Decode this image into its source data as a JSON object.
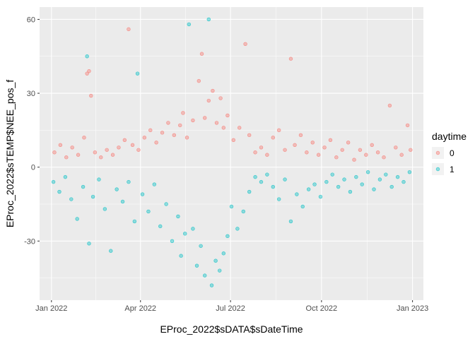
{
  "chart_data": {
    "type": "scatter",
    "title": "",
    "xlabel": "EProc_2022$sDATA$sDateTime",
    "ylabel": "EProc_2022$sTEMP$NEE_pos_f",
    "xlim": [
      "2021-12-20",
      "2023-01-12"
    ],
    "ylim": [
      -54,
      65
    ],
    "x_ticks": [
      {
        "date": "2022-01-01",
        "label": "Jan 2022"
      },
      {
        "date": "2022-04-01",
        "label": "Apr 2022"
      },
      {
        "date": "2022-07-01",
        "label": "Jul 2022"
      },
      {
        "date": "2022-10-01",
        "label": "Oct 2022"
      },
      {
        "date": "2023-01-01",
        "label": "Jan 2023"
      }
    ],
    "y_ticks": [
      -30,
      0,
      30,
      60
    ],
    "grid": true,
    "panel_background": "#EBEBEB",
    "grid_color": "#FFFFFF",
    "point_alpha": 0.4,
    "legend": {
      "title": "daytime",
      "position": "right",
      "entries": [
        {
          "label": "0",
          "color": "#F8766D"
        },
        {
          "label": "1",
          "color": "#00BFC4"
        }
      ]
    },
    "series": [
      {
        "name": "0",
        "color": "#F8766D",
        "points": [
          {
            "x": "2022-01-04",
            "y": 6
          },
          {
            "x": "2022-01-10",
            "y": 9
          },
          {
            "x": "2022-01-16",
            "y": 4
          },
          {
            "x": "2022-01-22",
            "y": 8
          },
          {
            "x": "2022-01-28",
            "y": 5
          },
          {
            "x": "2022-02-03",
            "y": 12
          },
          {
            "x": "2022-02-06",
            "y": 38
          },
          {
            "x": "2022-02-08",
            "y": 39
          },
          {
            "x": "2022-02-10",
            "y": 29
          },
          {
            "x": "2022-02-14",
            "y": 6
          },
          {
            "x": "2022-02-20",
            "y": 4
          },
          {
            "x": "2022-02-26",
            "y": 7
          },
          {
            "x": "2022-03-04",
            "y": 5
          },
          {
            "x": "2022-03-10",
            "y": 8
          },
          {
            "x": "2022-03-16",
            "y": 11
          },
          {
            "x": "2022-03-20",
            "y": 56
          },
          {
            "x": "2022-03-24",
            "y": 9
          },
          {
            "x": "2022-03-30",
            "y": 7
          },
          {
            "x": "2022-04-05",
            "y": 12
          },
          {
            "x": "2022-04-11",
            "y": 15
          },
          {
            "x": "2022-04-17",
            "y": 10
          },
          {
            "x": "2022-04-23",
            "y": 14
          },
          {
            "x": "2022-04-29",
            "y": 18
          },
          {
            "x": "2022-05-05",
            "y": 13
          },
          {
            "x": "2022-05-11",
            "y": 17
          },
          {
            "x": "2022-05-14",
            "y": 22
          },
          {
            "x": "2022-05-18",
            "y": 12
          },
          {
            "x": "2022-05-24",
            "y": 19
          },
          {
            "x": "2022-05-30",
            "y": 35
          },
          {
            "x": "2022-06-02",
            "y": 46
          },
          {
            "x": "2022-06-05",
            "y": 20
          },
          {
            "x": "2022-06-09",
            "y": 27
          },
          {
            "x": "2022-06-13",
            "y": 31
          },
          {
            "x": "2022-06-17",
            "y": 18
          },
          {
            "x": "2022-06-21",
            "y": 28
          },
          {
            "x": "2022-06-24",
            "y": 16
          },
          {
            "x": "2022-06-28",
            "y": 21
          },
          {
            "x": "2022-07-04",
            "y": 11
          },
          {
            "x": "2022-07-10",
            "y": 16
          },
          {
            "x": "2022-07-16",
            "y": 50
          },
          {
            "x": "2022-07-20",
            "y": 13
          },
          {
            "x": "2022-07-26",
            "y": 6
          },
          {
            "x": "2022-08-01",
            "y": 8
          },
          {
            "x": "2022-08-07",
            "y": 5
          },
          {
            "x": "2022-08-13",
            "y": 12
          },
          {
            "x": "2022-08-19",
            "y": 15
          },
          {
            "x": "2022-08-25",
            "y": 7
          },
          {
            "x": "2022-08-31",
            "y": 44
          },
          {
            "x": "2022-09-04",
            "y": 9
          },
          {
            "x": "2022-09-10",
            "y": 13
          },
          {
            "x": "2022-09-16",
            "y": 6
          },
          {
            "x": "2022-09-22",
            "y": 10
          },
          {
            "x": "2022-09-28",
            "y": 5
          },
          {
            "x": "2022-10-04",
            "y": 8
          },
          {
            "x": "2022-10-10",
            "y": 11
          },
          {
            "x": "2022-10-16",
            "y": 4
          },
          {
            "x": "2022-10-22",
            "y": 7
          },
          {
            "x": "2022-10-28",
            "y": 10
          },
          {
            "x": "2022-11-03",
            "y": 3
          },
          {
            "x": "2022-11-09",
            "y": 7
          },
          {
            "x": "2022-11-15",
            "y": 5
          },
          {
            "x": "2022-11-21",
            "y": 9
          },
          {
            "x": "2022-11-27",
            "y": 6
          },
          {
            "x": "2022-12-03",
            "y": 4
          },
          {
            "x": "2022-12-09",
            "y": 25
          },
          {
            "x": "2022-12-15",
            "y": 8
          },
          {
            "x": "2022-12-21",
            "y": 5
          },
          {
            "x": "2022-12-27",
            "y": 17
          },
          {
            "x": "2022-12-30",
            "y": 7
          }
        ]
      },
      {
        "name": "1",
        "color": "#00BFC4",
        "points": [
          {
            "x": "2022-01-03",
            "y": -6
          },
          {
            "x": "2022-01-09",
            "y": -10
          },
          {
            "x": "2022-01-15",
            "y": -4
          },
          {
            "x": "2022-01-21",
            "y": -13
          },
          {
            "x": "2022-01-27",
            "y": -21
          },
          {
            "x": "2022-02-02",
            "y": -8
          },
          {
            "x": "2022-02-06",
            "y": 45
          },
          {
            "x": "2022-02-08",
            "y": -31
          },
          {
            "x": "2022-02-12",
            "y": -12
          },
          {
            "x": "2022-02-18",
            "y": -5
          },
          {
            "x": "2022-02-24",
            "y": -17
          },
          {
            "x": "2022-03-02",
            "y": -34
          },
          {
            "x": "2022-03-08",
            "y": -9
          },
          {
            "x": "2022-03-14",
            "y": -14
          },
          {
            "x": "2022-03-20",
            "y": -6
          },
          {
            "x": "2022-03-26",
            "y": -22
          },
          {
            "x": "2022-03-29",
            "y": 38
          },
          {
            "x": "2022-04-03",
            "y": -11
          },
          {
            "x": "2022-04-09",
            "y": -18
          },
          {
            "x": "2022-04-15",
            "y": -7
          },
          {
            "x": "2022-04-21",
            "y": -24
          },
          {
            "x": "2022-04-27",
            "y": -15
          },
          {
            "x": "2022-05-03",
            "y": -30
          },
          {
            "x": "2022-05-09",
            "y": -20
          },
          {
            "x": "2022-05-12",
            "y": -36
          },
          {
            "x": "2022-05-16",
            "y": -27
          },
          {
            "x": "2022-05-20",
            "y": 58
          },
          {
            "x": "2022-05-24",
            "y": -25
          },
          {
            "x": "2022-05-28",
            "y": -40
          },
          {
            "x": "2022-06-01",
            "y": -32
          },
          {
            "x": "2022-06-05",
            "y": -44
          },
          {
            "x": "2022-06-09",
            "y": 60
          },
          {
            "x": "2022-06-12",
            "y": -48
          },
          {
            "x": "2022-06-16",
            "y": -38
          },
          {
            "x": "2022-06-20",
            "y": -42
          },
          {
            "x": "2022-06-24",
            "y": -35
          },
          {
            "x": "2022-06-28",
            "y": -28
          },
          {
            "x": "2022-07-02",
            "y": -16
          },
          {
            "x": "2022-07-08",
            "y": -25
          },
          {
            "x": "2022-07-14",
            "y": -18
          },
          {
            "x": "2022-07-20",
            "y": -10
          },
          {
            "x": "2022-07-26",
            "y": -4
          },
          {
            "x": "2022-08-01",
            "y": -6
          },
          {
            "x": "2022-08-07",
            "y": -3
          },
          {
            "x": "2022-08-13",
            "y": -8
          },
          {
            "x": "2022-08-19",
            "y": -13
          },
          {
            "x": "2022-08-25",
            "y": -5
          },
          {
            "x": "2022-08-31",
            "y": -22
          },
          {
            "x": "2022-09-06",
            "y": -11
          },
          {
            "x": "2022-09-12",
            "y": -16
          },
          {
            "x": "2022-09-18",
            "y": -9
          },
          {
            "x": "2022-09-24",
            "y": -7
          },
          {
            "x": "2022-09-30",
            "y": -12
          },
          {
            "x": "2022-10-06",
            "y": -6
          },
          {
            "x": "2022-10-12",
            "y": -3
          },
          {
            "x": "2022-10-18",
            "y": -8
          },
          {
            "x": "2022-10-24",
            "y": -5
          },
          {
            "x": "2022-10-30",
            "y": -10
          },
          {
            "x": "2022-11-05",
            "y": -4
          },
          {
            "x": "2022-11-11",
            "y": -7
          },
          {
            "x": "2022-11-17",
            "y": -2
          },
          {
            "x": "2022-11-23",
            "y": -9
          },
          {
            "x": "2022-11-29",
            "y": -5
          },
          {
            "x": "2022-12-05",
            "y": -3
          },
          {
            "x": "2022-12-11",
            "y": -8
          },
          {
            "x": "2022-12-17",
            "y": -4
          },
          {
            "x": "2022-12-23",
            "y": -6
          },
          {
            "x": "2022-12-29",
            "y": -2
          }
        ]
      }
    ]
  }
}
